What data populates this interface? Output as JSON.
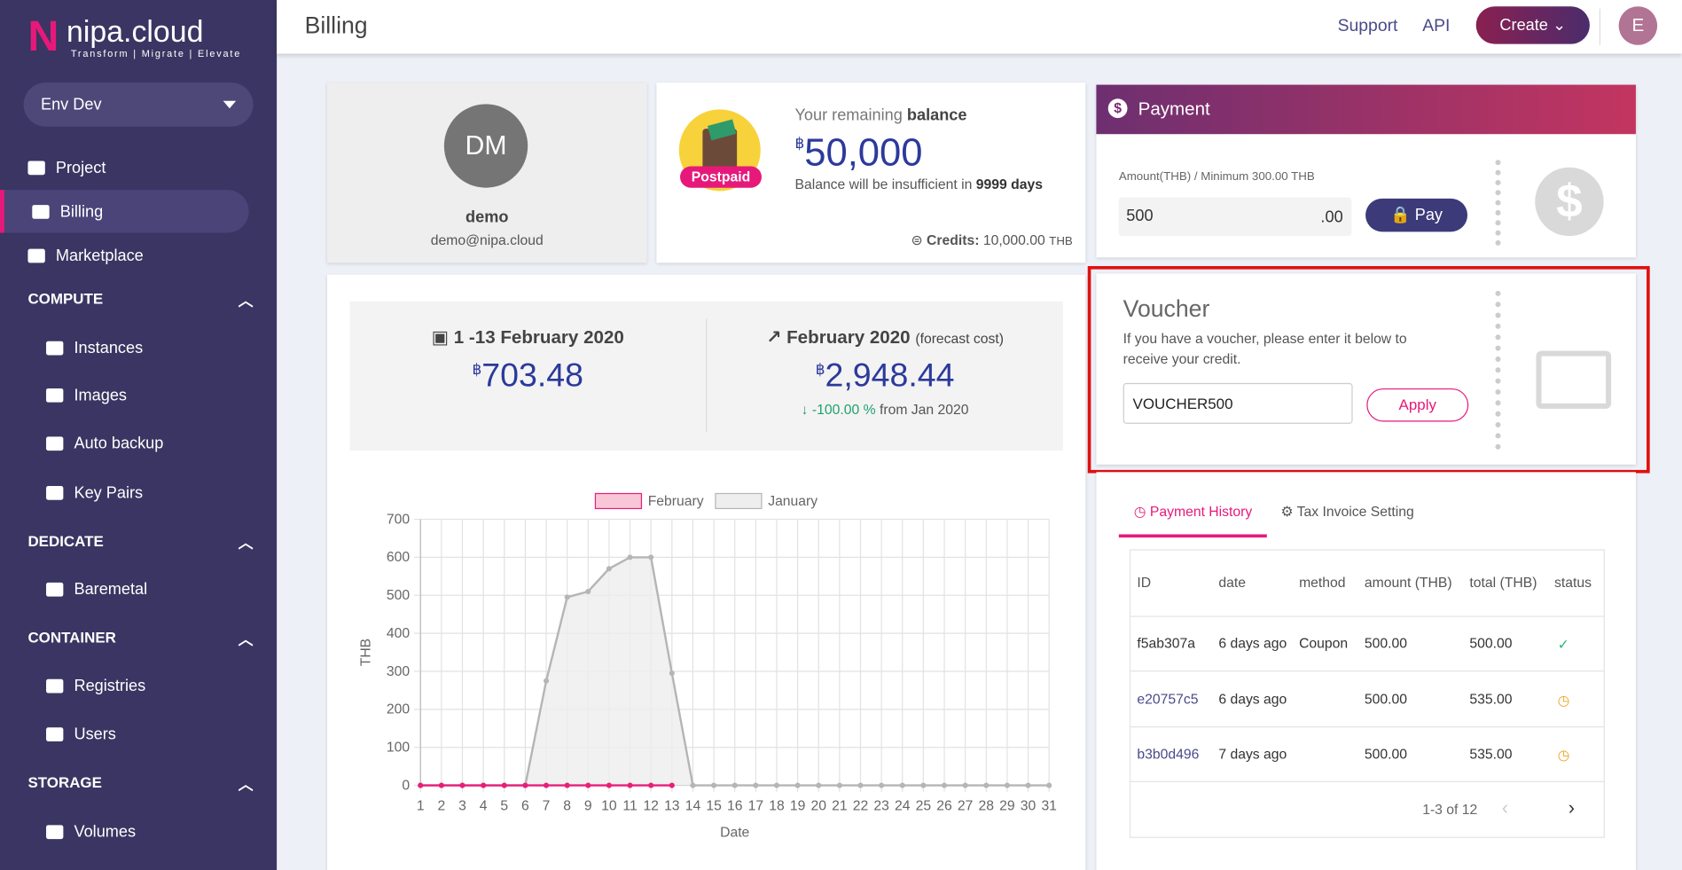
{
  "sidebar": {
    "brand": "nipa.cloud",
    "tagline": "Transform | Migrate | Elevate",
    "env": "Env Dev",
    "nav": [
      "Project",
      "Billing",
      "Marketplace"
    ],
    "sections": [
      {
        "title": "COMPUTE",
        "items": [
          "Instances",
          "Images",
          "Auto backup",
          "Key Pairs"
        ]
      },
      {
        "title": "DEDICATE",
        "items": [
          "Baremetal"
        ]
      },
      {
        "title": "CONTAINER",
        "items": [
          "Registries",
          "Users"
        ]
      },
      {
        "title": "STORAGE",
        "items": [
          "Volumes"
        ]
      }
    ]
  },
  "header": {
    "title": "Billing",
    "links": [
      "Support",
      "API"
    ],
    "create": "Create",
    "avatar": "E"
  },
  "profile": {
    "initials": "DM",
    "name": "demo",
    "email": "demo@nipa.cloud"
  },
  "balance": {
    "badge": "Postpaid",
    "label": "Your remaining",
    "label_bold": "balance",
    "currency": "฿",
    "amount": "50,000",
    "note": "Balance will be insufficient in",
    "days": "9999 days",
    "credits_label": "Credits:",
    "credits": "10,000.00",
    "credits_unit": "THB"
  },
  "summary": {
    "period": "1 -13 February 2020",
    "cost": "703.48",
    "forecast_month": "February 2020",
    "forecast_note": "(forecast cost)",
    "forecast": "2,948.44",
    "change": "-100.00 %",
    "change_note": "from Jan 2020"
  },
  "payment": {
    "title": "Payment",
    "amount_label": "Amount(THB) / Minimum 300.00 THB",
    "amount": "500",
    "decimals": ".00",
    "pay": "Pay"
  },
  "voucher": {
    "title": "Voucher",
    "text": "If you have a voucher, please enter it below to receive your credit.",
    "code": "VOUCHER500",
    "apply": "Apply"
  },
  "tabs": [
    "Payment History",
    "Tax Invoice Setting"
  ],
  "table": {
    "columns": [
      "ID",
      "date",
      "method",
      "amount (THB)",
      "total (THB)",
      "status"
    ],
    "rows": [
      [
        "f5ab307a",
        "6 days ago",
        "Coupon",
        "500.00",
        "500.00"
      ],
      [
        "e20757c5",
        "6 days ago",
        null,
        "500.00",
        "535.00"
      ],
      [
        "b3b0d496",
        "7 days ago",
        null,
        "500.00",
        "535.00"
      ]
    ],
    "pagination": "1-3 of 12"
  },
  "chart_data": {
    "type": "line",
    "xlabel": "Date",
    "ylabel": "THB",
    "x": [
      1,
      2,
      3,
      4,
      5,
      6,
      7,
      8,
      9,
      10,
      11,
      12,
      13,
      14,
      15,
      16,
      17,
      18,
      19,
      20,
      21,
      22,
      23,
      24,
      25,
      26,
      27,
      28,
      29,
      30,
      31
    ],
    "xlim": [
      1,
      31
    ],
    "xticks": [
      1,
      2,
      3,
      4,
      5,
      6,
      7,
      8,
      9,
      10,
      11,
      12,
      13,
      14,
      15,
      16,
      17,
      18,
      19,
      20,
      21,
      22,
      23,
      24,
      25,
      26,
      27,
      28,
      29,
      30,
      31
    ],
    "ylim": [
      0,
      700
    ],
    "yticks": [
      0,
      100,
      200,
      300,
      400,
      500,
      600,
      700
    ],
    "grid": true,
    "legend": "top",
    "series": [
      {
        "name": "February",
        "color": "#e91e7a",
        "fill_color": "#f8c6d6",
        "values": [
          0,
          0,
          0,
          0,
          0,
          0,
          0,
          0,
          0,
          0,
          0,
          0,
          0,
          null,
          null,
          null,
          null,
          null,
          null,
          null,
          null,
          null,
          null,
          null,
          null,
          null,
          null,
          null,
          null,
          null,
          null
        ]
      },
      {
        "name": "January",
        "color": "#b5b5b5",
        "fill_color": "#eeeeee",
        "values": [
          0,
          0,
          0,
          0,
          0,
          0,
          275,
          495,
          510,
          570,
          600,
          600,
          295,
          0,
          0,
          0,
          0,
          0,
          0,
          0,
          0,
          0,
          0,
          0,
          0,
          0,
          0,
          0,
          0,
          0,
          0
        ]
      }
    ]
  }
}
